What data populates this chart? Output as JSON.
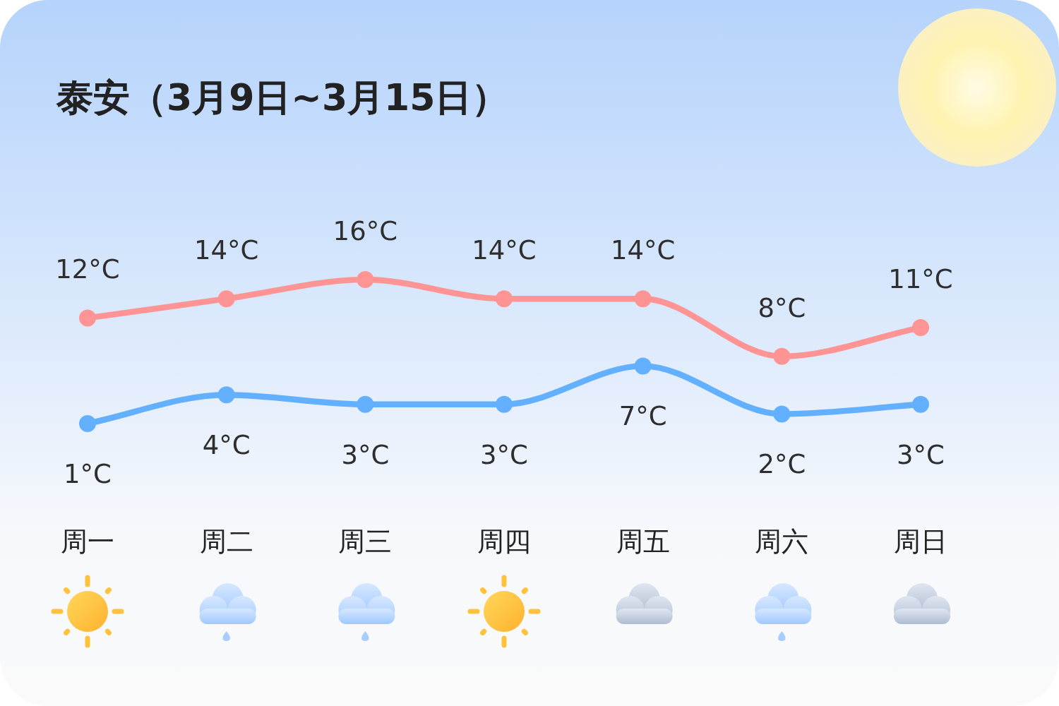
{
  "chart_data": {
    "type": "line",
    "title": "泰安（3月9日~3月15日）",
    "categories": [
      "周一",
      "周二",
      "周三",
      "周四",
      "周五",
      "周六",
      "周日"
    ],
    "series": [
      {
        "color": "#ff9494",
        "values": [
          12,
          14,
          16,
          14,
          14,
          8,
          11
        ],
        "value_labels": [
          "12°C",
          "14°C",
          "16°C",
          "14°C",
          "14°C",
          "8°C",
          "11°C"
        ]
      },
      {
        "color": "#62b0ff",
        "values": [
          1,
          4,
          3,
          3,
          7,
          2,
          3
        ],
        "value_labels": [
          "1°C",
          "4°C",
          "3°C",
          "3°C",
          "7°C",
          "2°C",
          "3°C"
        ]
      }
    ],
    "marker": "circle",
    "line_style": "solid",
    "tick_labels": "x"
  }
}
